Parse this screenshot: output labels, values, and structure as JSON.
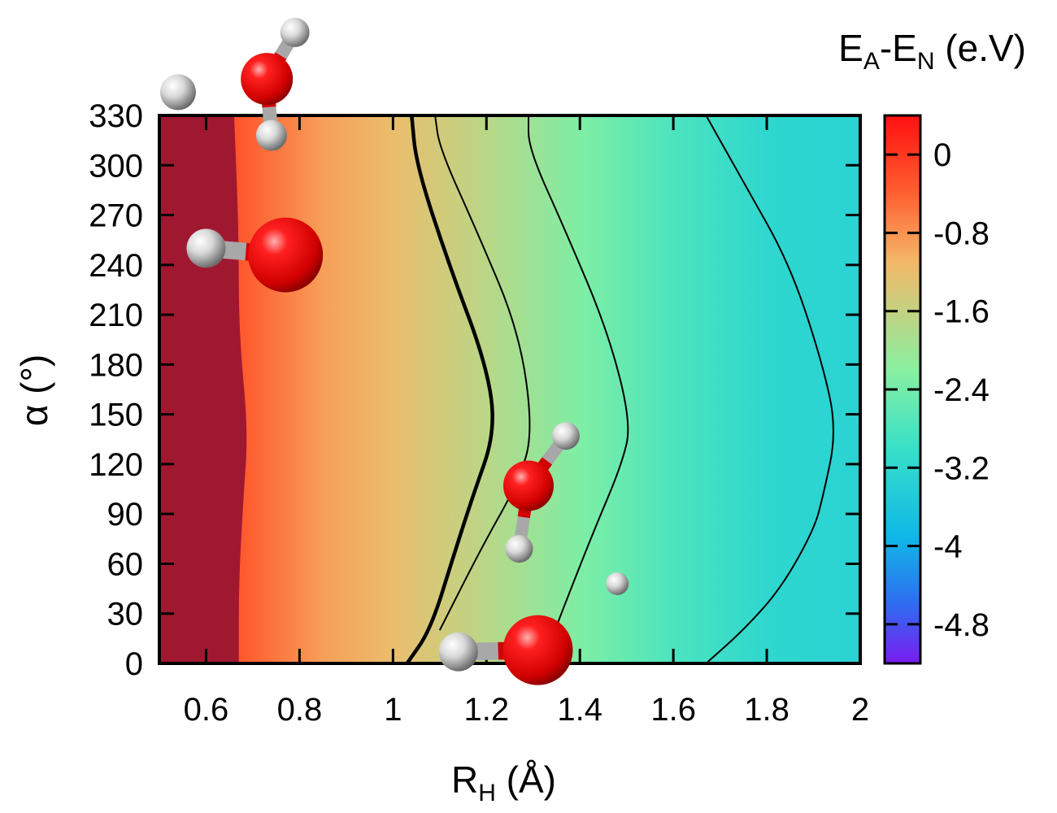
{
  "chart_data": {
    "type": "heatmap",
    "title": "",
    "xlabel": {
      "main": "R",
      "sub": "H",
      "unit": " (Å)"
    },
    "ylabel": "α (°)",
    "xlim": [
      0.5,
      2.0
    ],
    "ylim": [
      0,
      330
    ],
    "xticks": [
      "0.6",
      "0.8",
      "1",
      "1.2",
      "1.4",
      "1.6",
      "1.8",
      "2"
    ],
    "xtick_values": [
      0.6,
      0.8,
      1.0,
      1.2,
      1.4,
      1.6,
      1.8,
      2.0
    ],
    "yticks": [
      "0",
      "30",
      "60",
      "90",
      "120",
      "150",
      "180",
      "210",
      "240",
      "270",
      "300",
      "330"
    ],
    "ytick_values": [
      0,
      30,
      60,
      90,
      120,
      150,
      180,
      210,
      240,
      270,
      300,
      330
    ],
    "grid": false,
    "colorbar": {
      "title": {
        "e1": "E",
        "s1": "A",
        "mid": "-E",
        "s2": "N",
        "unit": " (e.V)"
      },
      "range": [
        -5.2,
        0.4
      ],
      "tick_labels": [
        "0",
        "-0.8",
        "-1.6",
        "-2.4",
        "-3.2",
        "-4",
        "-4.8"
      ],
      "tick_values": [
        0,
        -0.8,
        -1.6,
        -2.4,
        -3.2,
        -4.0,
        -4.8
      ],
      "palette": [
        "#7a1cf0",
        "#2f6cf0",
        "#10b8e8",
        "#38e0c8",
        "#88f0a0",
        "#f4b868",
        "#ff6030",
        "#ff1010"
      ],
      "palette_stops": [
        -5.2,
        -4.6,
        -3.9,
        -3.0,
        -2.2,
        -1.1,
        -0.4,
        0.4
      ]
    },
    "energy_field": {
      "description_points": [
        {
          "rh": 0.5,
          "value": 0.4
        },
        {
          "rh": 0.67,
          "value": -0.3
        },
        {
          "rh": 0.85,
          "value": -0.9
        },
        {
          "rh": 1.0,
          "value": -1.2
        },
        {
          "rh": 1.2,
          "value": -1.7
        },
        {
          "rh": 1.4,
          "value": -2.3
        },
        {
          "rh": 1.6,
          "value": -2.8
        },
        {
          "rh": 1.8,
          "value": -3.2
        },
        {
          "rh": 1.97,
          "value": -3.3
        }
      ]
    },
    "contour_lines": [
      {
        "bold": true,
        "points": [
          [
            1.03,
            0
          ],
          [
            1.08,
            20
          ],
          [
            1.13,
            65
          ],
          [
            1.17,
            100
          ],
          [
            1.22,
            140
          ],
          [
            1.2,
            180
          ],
          [
            1.12,
            240
          ],
          [
            1.05,
            300
          ],
          [
            1.04,
            330
          ]
        ]
      },
      {
        "bold": false,
        "points": [
          [
            1.1,
            20
          ],
          [
            1.19,
            70
          ],
          [
            1.27,
            110
          ],
          [
            1.3,
            140
          ],
          [
            1.27,
            200
          ],
          [
            1.18,
            260
          ],
          [
            1.1,
            310
          ],
          [
            1.09,
            330
          ]
        ]
      },
      {
        "bold": false,
        "points": [
          [
            1.32,
            0
          ],
          [
            1.36,
            30
          ],
          [
            1.43,
            80
          ],
          [
            1.49,
            120
          ],
          [
            1.51,
            145
          ],
          [
            1.46,
            200
          ],
          [
            1.37,
            260
          ],
          [
            1.29,
            310
          ],
          [
            1.29,
            330
          ]
        ]
      },
      {
        "bold": false,
        "points": [
          [
            1.67,
            0
          ],
          [
            1.75,
            20
          ],
          [
            1.83,
            45
          ],
          [
            1.9,
            80
          ],
          [
            1.92,
            100
          ],
          [
            1.95,
            140
          ],
          [
            1.92,
            180
          ],
          [
            1.85,
            240
          ],
          [
            1.75,
            290
          ],
          [
            1.67,
            330
          ]
        ]
      },
      {
        "bold": false,
        "points": [
          [
            0.67,
            0
          ],
          [
            0.67,
            50
          ],
          [
            0.68,
            100
          ],
          [
            0.69,
            140
          ],
          [
            0.67,
            200
          ],
          [
            0.67,
            260
          ],
          [
            0.66,
            330
          ]
        ]
      }
    ],
    "molecules": [
      {
        "name": "water-top-left",
        "atoms": [
          {
            "el": "O",
            "rh": 0.73,
            "a": 352,
            "r": 32
          },
          {
            "el": "H",
            "rh": 0.79,
            "a": 380,
            "r": 18
          },
          {
            "el": "H",
            "rh": 0.74,
            "a": 318,
            "r": 19
          },
          {
            "el": "H",
            "rh": 0.54,
            "a": 344,
            "r": 22
          }
        ]
      },
      {
        "name": "hydroxyl-left",
        "atoms": [
          {
            "el": "O",
            "rh": 0.77,
            "a": 246,
            "r": 46
          },
          {
            "el": "H",
            "rh": 0.6,
            "a": 250,
            "r": 24
          }
        ]
      },
      {
        "name": "water-center",
        "atoms": [
          {
            "el": "O",
            "rh": 1.29,
            "a": 107,
            "r": 31
          },
          {
            "el": "H",
            "rh": 1.37,
            "a": 137,
            "r": 17
          },
          {
            "el": "H",
            "rh": 1.27,
            "a": 69,
            "r": 17
          },
          {
            "el": "H",
            "rh": 1.48,
            "a": 48,
            "r": 14
          }
        ]
      },
      {
        "name": "hydroxyl-bottom",
        "atoms": [
          {
            "el": "O",
            "rh": 1.31,
            "a": 8,
            "r": 43
          },
          {
            "el": "H",
            "rh": 1.14,
            "a": 7,
            "r": 24
          }
        ]
      }
    ]
  }
}
